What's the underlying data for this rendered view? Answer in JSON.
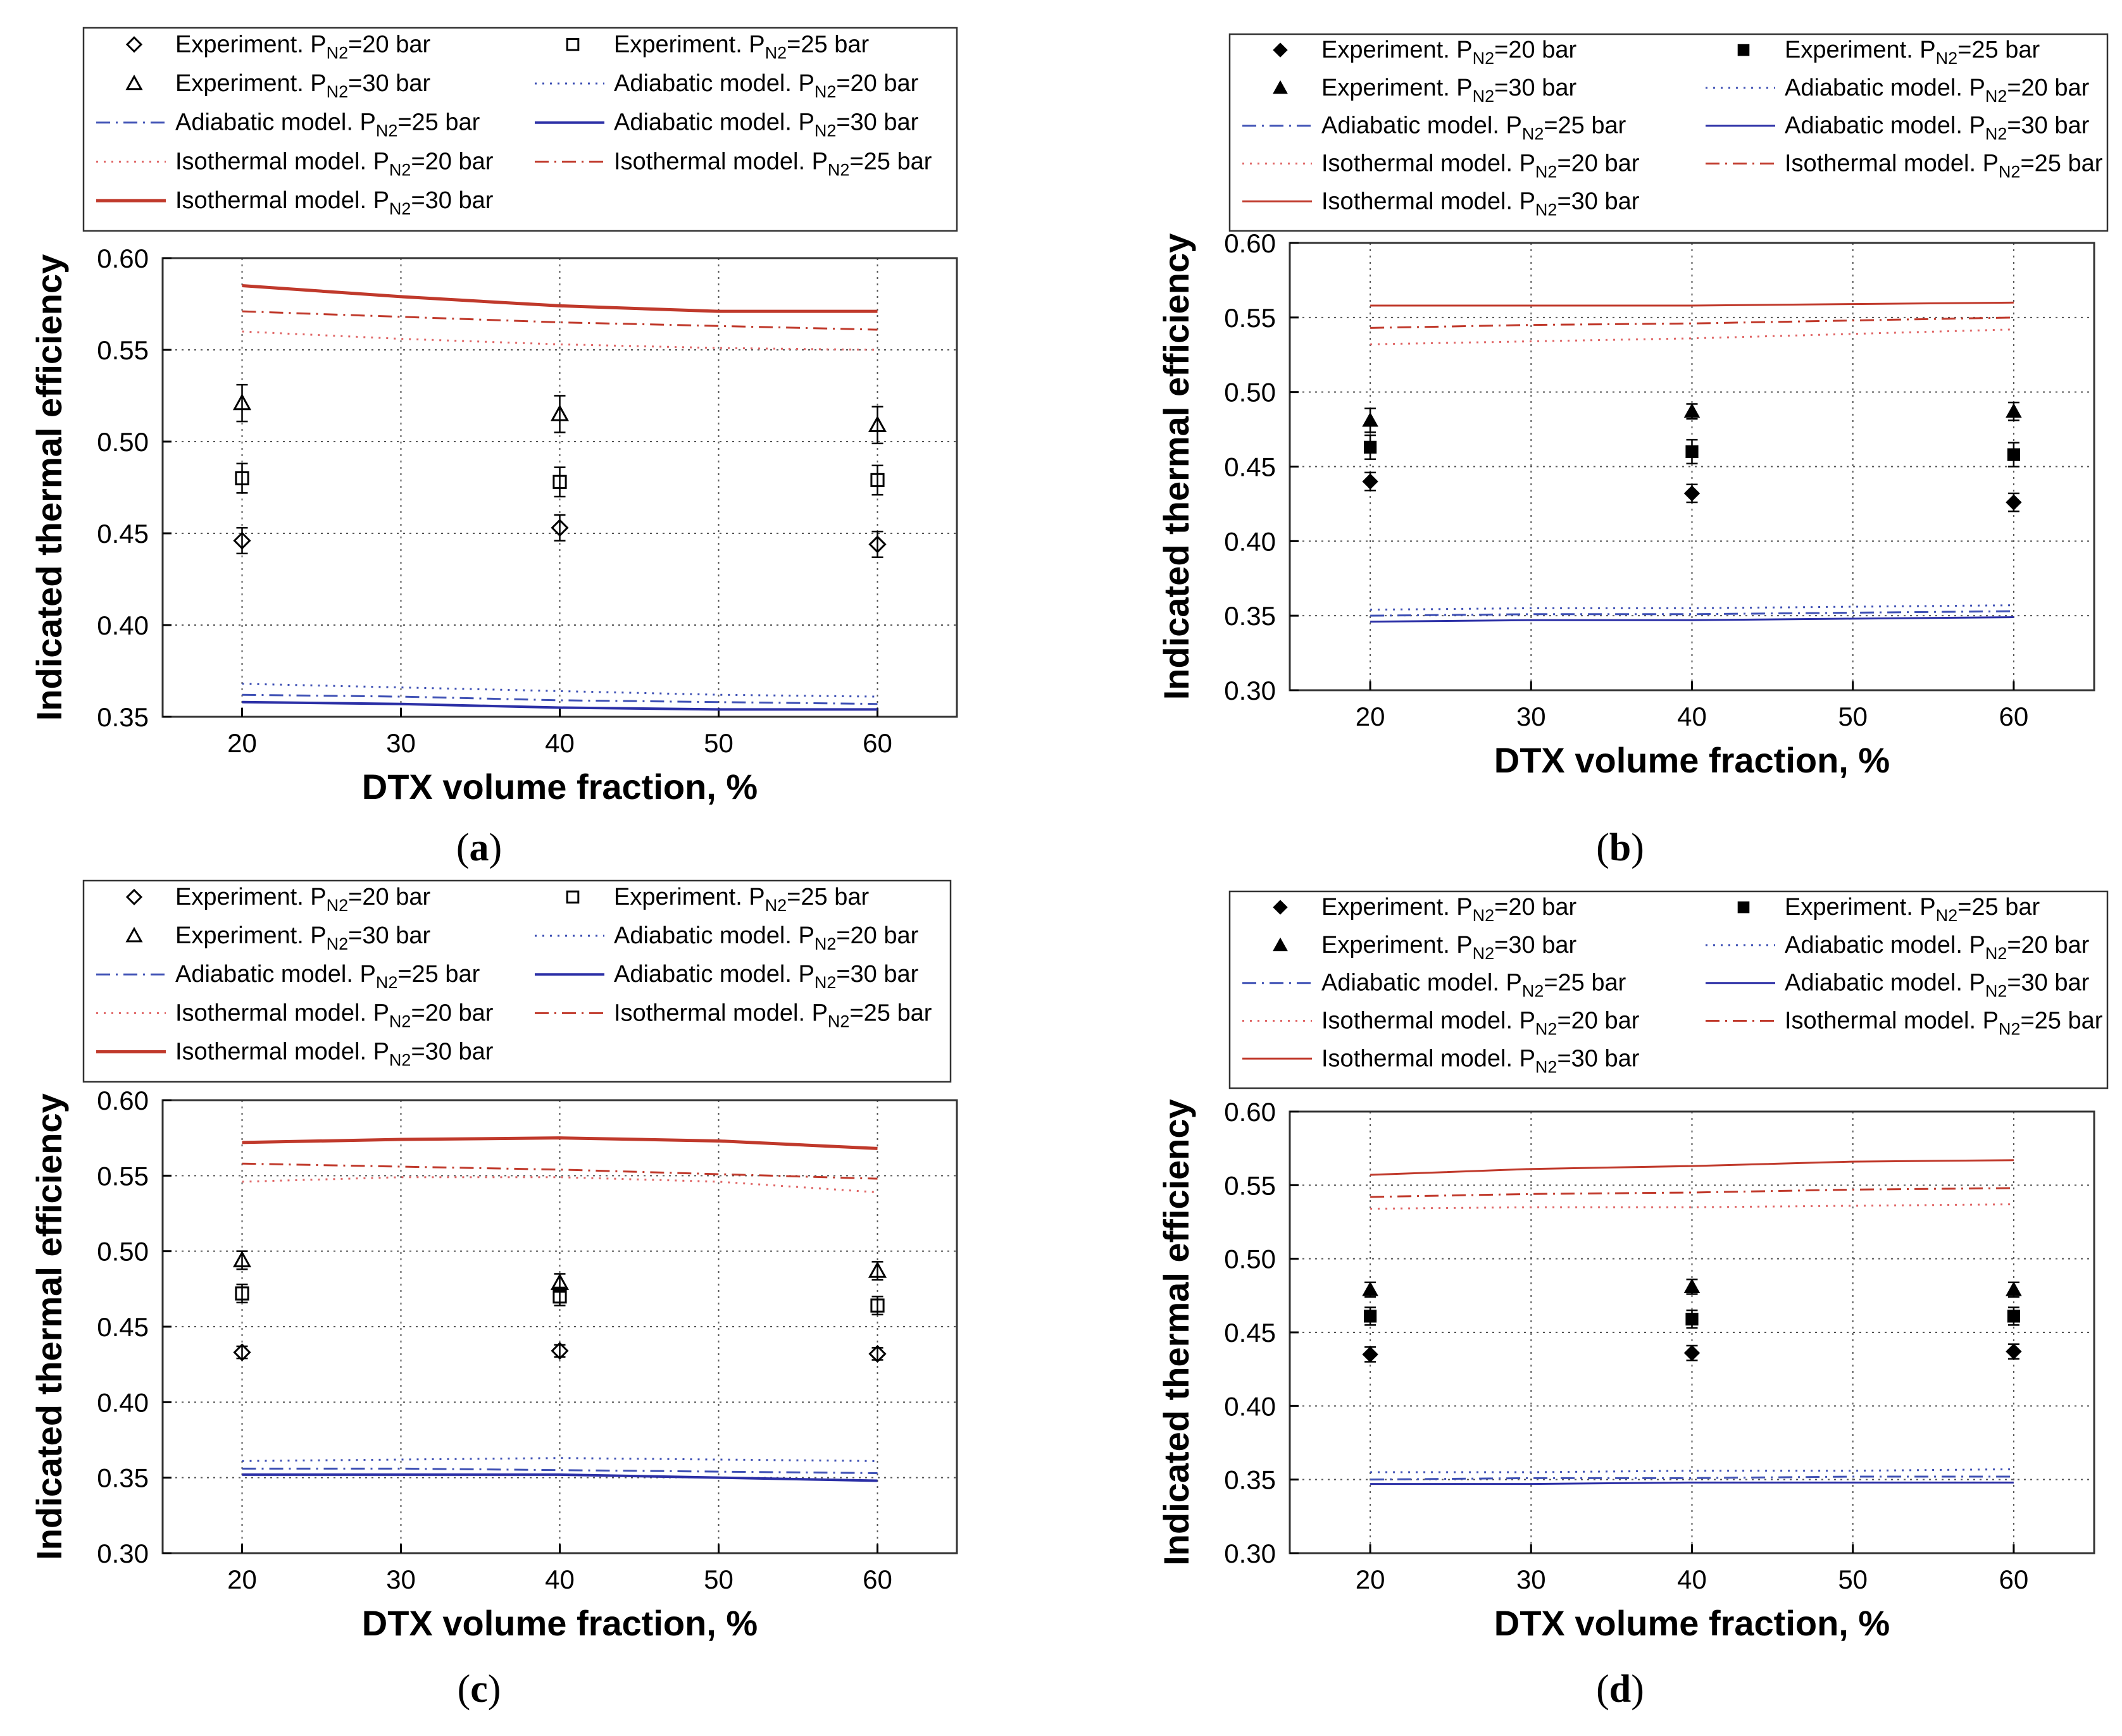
{
  "figure": {
    "panel_letters": [
      "a",
      "b",
      "c",
      "d"
    ]
  },
  "legend": {
    "exp20": {
      "pre": "Experiment. P",
      "sub": "N2",
      "post": "=20 bar"
    },
    "exp25": {
      "pre": "Experiment. P",
      "sub": "N2",
      "post": "=25 bar"
    },
    "exp30": {
      "pre": "Experiment. P",
      "sub": "N2",
      "post": "=30 bar"
    },
    "adi20": {
      "pre": "Adiabatic model. P",
      "sub": "N2",
      "post": "=20 bar"
    },
    "adi25": {
      "pre": "Adiabatic model. P",
      "sub": "N2",
      "post": "=25 bar"
    },
    "adi30": {
      "pre": "Adiabatic model. P",
      "sub": "N2",
      "post": "=30 bar"
    },
    "iso20": {
      "pre": "Isothermal model. P",
      "sub": "N2",
      "post": "=20 bar"
    },
    "iso25": {
      "pre": "Isothermal model. P",
      "sub": "N2",
      "post": "=25 bar"
    },
    "iso30": {
      "pre": "Isothermal model. P",
      "sub": "N2",
      "post": "=30 bar"
    }
  },
  "colors": {
    "red": "#c0392b",
    "pink": "#e06666",
    "blue": "#2b2fa6",
    "blue_light": "#3f51b5",
    "grid": "#555555",
    "frame": "#333333"
  },
  "chart_data": [
    {
      "panel": "a",
      "type": "line",
      "xlabel": "DTX volume fraction, %",
      "ylabel": "Indicated thermal efficiency",
      "xlim": [
        15,
        65
      ],
      "ylim": [
        0.35,
        0.6
      ],
      "xticks": [
        20,
        30,
        40,
        50,
        60
      ],
      "yticks": [
        0.35,
        0.4,
        0.45,
        0.5,
        0.55,
        0.6
      ],
      "ytick_labels": [
        "0.35",
        "0.40",
        "0.45",
        "0.50",
        "0.55",
        "0.60"
      ],
      "marker_fill": "open",
      "experiments": [
        {
          "key": "exp20",
          "marker": "diamond",
          "x": [
            20,
            40,
            60
          ],
          "y": [
            0.446,
            0.453,
            0.444
          ],
          "err": [
            0.007,
            0.007,
            0.007
          ]
        },
        {
          "key": "exp25",
          "marker": "square",
          "x": [
            20,
            40,
            60
          ],
          "y": [
            0.48,
            0.478,
            0.479
          ],
          "err": [
            0.008,
            0.008,
            0.008
          ]
        },
        {
          "key": "exp30",
          "marker": "triangle",
          "x": [
            20,
            40,
            60
          ],
          "y": [
            0.521,
            0.515,
            0.509
          ],
          "err": [
            0.01,
            0.01,
            0.01
          ]
        }
      ],
      "models": [
        {
          "key": "iso30",
          "style": "solid",
          "color": "red",
          "width": 5,
          "x": [
            20,
            30,
            40,
            50,
            60
          ],
          "y": [
            0.585,
            0.579,
            0.574,
            0.571,
            0.571
          ]
        },
        {
          "key": "iso25",
          "style": "dashdot",
          "color": "red",
          "width": 3,
          "x": [
            20,
            30,
            40,
            50,
            60
          ],
          "y": [
            0.571,
            0.568,
            0.565,
            0.563,
            0.561
          ]
        },
        {
          "key": "iso20",
          "style": "dotted",
          "color": "pink",
          "width": 3,
          "x": [
            20,
            30,
            40,
            50,
            60
          ],
          "y": [
            0.56,
            0.556,
            0.553,
            0.551,
            0.55
          ]
        },
        {
          "key": "adi20",
          "style": "dotted",
          "color": "blue_light",
          "width": 3,
          "x": [
            20,
            30,
            40,
            50,
            60
          ],
          "y": [
            0.368,
            0.366,
            0.364,
            0.362,
            0.361
          ]
        },
        {
          "key": "adi25",
          "style": "dashdot",
          "color": "blue_light",
          "width": 3,
          "x": [
            20,
            30,
            40,
            50,
            60
          ],
          "y": [
            0.362,
            0.361,
            0.359,
            0.358,
            0.357
          ]
        },
        {
          "key": "adi30",
          "style": "solid",
          "color": "blue",
          "width": 4,
          "x": [
            20,
            30,
            40,
            50,
            60
          ],
          "y": [
            0.358,
            0.357,
            0.355,
            0.354,
            0.354
          ]
        }
      ]
    },
    {
      "panel": "b",
      "type": "line",
      "xlabel": "DTX volume fraction, %",
      "ylabel": "Indicated thermal efficiency",
      "xlim": [
        15,
        65
      ],
      "ylim": [
        0.3,
        0.6
      ],
      "xticks": [
        20,
        30,
        40,
        50,
        60
      ],
      "yticks": [
        0.3,
        0.35,
        0.4,
        0.45,
        0.5,
        0.55,
        0.6
      ],
      "ytick_labels": [
        "0.30",
        "0.35",
        "0.40",
        "0.45",
        "0.50",
        "0.55",
        "0.60"
      ],
      "marker_fill": "filled",
      "experiments": [
        {
          "key": "exp20",
          "marker": "diamond",
          "x": [
            20,
            40,
            60
          ],
          "y": [
            0.44,
            0.432,
            0.426
          ],
          "err": [
            0.006,
            0.006,
            0.006
          ]
        },
        {
          "key": "exp25",
          "marker": "square",
          "x": [
            20,
            40,
            60
          ],
          "y": [
            0.463,
            0.46,
            0.458
          ],
          "err": [
            0.008,
            0.008,
            0.008
          ]
        },
        {
          "key": "exp30",
          "marker": "triangle",
          "x": [
            20,
            40,
            60
          ],
          "y": [
            0.481,
            0.487,
            0.487
          ],
          "err": [
            0.008,
            0.005,
            0.006
          ]
        }
      ],
      "models": [
        {
          "key": "iso30",
          "style": "solid",
          "color": "red",
          "width": 3,
          "x": [
            20,
            30,
            40,
            50,
            60
          ],
          "y": [
            0.558,
            0.558,
            0.558,
            0.559,
            0.56
          ]
        },
        {
          "key": "iso25",
          "style": "dashdot",
          "color": "red",
          "width": 3,
          "x": [
            20,
            30,
            40,
            50,
            60
          ],
          "y": [
            0.543,
            0.545,
            0.546,
            0.548,
            0.55
          ]
        },
        {
          "key": "iso20",
          "style": "dotted",
          "color": "pink",
          "width": 3,
          "x": [
            20,
            30,
            40,
            50,
            60
          ],
          "y": [
            0.532,
            0.534,
            0.536,
            0.539,
            0.542
          ]
        },
        {
          "key": "adi20",
          "style": "dotted",
          "color": "blue_light",
          "width": 3,
          "x": [
            20,
            30,
            40,
            50,
            60
          ],
          "y": [
            0.354,
            0.355,
            0.355,
            0.356,
            0.357
          ]
        },
        {
          "key": "adi25",
          "style": "dashdot",
          "color": "blue_light",
          "width": 3,
          "x": [
            20,
            30,
            40,
            50,
            60
          ],
          "y": [
            0.35,
            0.351,
            0.351,
            0.352,
            0.353
          ]
        },
        {
          "key": "adi30",
          "style": "solid",
          "color": "blue",
          "width": 3,
          "x": [
            20,
            30,
            40,
            50,
            60
          ],
          "y": [
            0.346,
            0.347,
            0.347,
            0.348,
            0.349
          ]
        }
      ]
    },
    {
      "panel": "c",
      "type": "line",
      "xlabel": "DTX volume fraction, %",
      "ylabel": "Indicated thermal efficiency",
      "xlim": [
        15,
        65
      ],
      "ylim": [
        0.3,
        0.6
      ],
      "xticks": [
        20,
        30,
        40,
        50,
        60
      ],
      "yticks": [
        0.3,
        0.35,
        0.4,
        0.45,
        0.5,
        0.55,
        0.6
      ],
      "ytick_labels": [
        "0.30",
        "0.35",
        "0.40",
        "0.45",
        "0.50",
        "0.55",
        "0.60"
      ],
      "marker_fill": "open",
      "experiments": [
        {
          "key": "exp20",
          "marker": "diamond",
          "x": [
            20,
            40,
            60
          ],
          "y": [
            0.433,
            0.434,
            0.432
          ],
          "err": [
            0.004,
            0.004,
            0.004
          ]
        },
        {
          "key": "exp25",
          "marker": "square",
          "x": [
            20,
            40,
            60
          ],
          "y": [
            0.472,
            0.47,
            0.464
          ],
          "err": [
            0.006,
            0.006,
            0.006
          ]
        },
        {
          "key": "exp30",
          "marker": "triangle",
          "x": [
            20,
            40,
            60
          ],
          "y": [
            0.494,
            0.479,
            0.487
          ],
          "err": [
            0.006,
            0.006,
            0.006
          ]
        }
      ],
      "models": [
        {
          "key": "iso30",
          "style": "solid",
          "color": "red",
          "width": 5,
          "x": [
            20,
            30,
            40,
            50,
            60
          ],
          "y": [
            0.572,
            0.574,
            0.575,
            0.573,
            0.568
          ]
        },
        {
          "key": "iso25",
          "style": "dashdot",
          "color": "red",
          "width": 3,
          "x": [
            20,
            30,
            40,
            50,
            60
          ],
          "y": [
            0.558,
            0.556,
            0.554,
            0.551,
            0.548
          ]
        },
        {
          "key": "iso20",
          "style": "dotted",
          "color": "pink",
          "width": 3,
          "x": [
            20,
            30,
            40,
            50,
            60
          ],
          "y": [
            0.546,
            0.549,
            0.549,
            0.546,
            0.539
          ]
        },
        {
          "key": "adi20",
          "style": "dotted",
          "color": "blue_light",
          "width": 3,
          "x": [
            20,
            30,
            40,
            50,
            60
          ],
          "y": [
            0.361,
            0.362,
            0.363,
            0.362,
            0.361
          ]
        },
        {
          "key": "adi25",
          "style": "dashdot",
          "color": "blue_light",
          "width": 3,
          "x": [
            20,
            30,
            40,
            50,
            60
          ],
          "y": [
            0.356,
            0.356,
            0.355,
            0.354,
            0.353
          ]
        },
        {
          "key": "adi30",
          "style": "solid",
          "color": "blue",
          "width": 4,
          "x": [
            20,
            30,
            40,
            50,
            60
          ],
          "y": [
            0.352,
            0.352,
            0.352,
            0.35,
            0.348
          ]
        }
      ]
    },
    {
      "panel": "d",
      "type": "line",
      "xlabel": "DTX volume fraction, %",
      "ylabel": "Indicated thermal efficiency",
      "xlim": [
        15,
        65
      ],
      "ylim": [
        0.3,
        0.6
      ],
      "xticks": [
        20,
        30,
        40,
        50,
        60
      ],
      "yticks": [
        0.3,
        0.35,
        0.4,
        0.45,
        0.5,
        0.55,
        0.6
      ],
      "ytick_labels": [
        "0.30",
        "0.35",
        "0.40",
        "0.45",
        "0.50",
        "0.55",
        "0.60"
      ],
      "marker_fill": "filled",
      "experiments": [
        {
          "key": "exp20",
          "marker": "diamond",
          "x": [
            20,
            40,
            60
          ],
          "y": [
            0.435,
            0.436,
            0.437
          ],
          "err": [
            0.005,
            0.005,
            0.005
          ]
        },
        {
          "key": "exp25",
          "marker": "square",
          "x": [
            20,
            40,
            60
          ],
          "y": [
            0.461,
            0.459,
            0.461
          ],
          "err": [
            0.006,
            0.006,
            0.006
          ]
        },
        {
          "key": "exp30",
          "marker": "triangle",
          "x": [
            20,
            40,
            60
          ],
          "y": [
            0.479,
            0.481,
            0.479
          ],
          "err": [
            0.005,
            0.005,
            0.005
          ]
        }
      ],
      "models": [
        {
          "key": "iso30",
          "style": "solid",
          "color": "red",
          "width": 3,
          "x": [
            20,
            30,
            40,
            50,
            60
          ],
          "y": [
            0.557,
            0.561,
            0.563,
            0.566,
            0.567
          ]
        },
        {
          "key": "iso25",
          "style": "dashdot",
          "color": "red",
          "width": 3,
          "x": [
            20,
            30,
            40,
            50,
            60
          ],
          "y": [
            0.542,
            0.544,
            0.545,
            0.547,
            0.548
          ]
        },
        {
          "key": "iso20",
          "style": "dotted",
          "color": "pink",
          "width": 3,
          "x": [
            20,
            30,
            40,
            50,
            60
          ],
          "y": [
            0.534,
            0.535,
            0.535,
            0.536,
            0.537
          ]
        },
        {
          "key": "adi20",
          "style": "dotted",
          "color": "blue_light",
          "width": 3,
          "x": [
            20,
            30,
            40,
            50,
            60
          ],
          "y": [
            0.355,
            0.355,
            0.356,
            0.356,
            0.357
          ]
        },
        {
          "key": "adi25",
          "style": "dashdot",
          "color": "blue_light",
          "width": 3,
          "x": [
            20,
            30,
            40,
            50,
            60
          ],
          "y": [
            0.35,
            0.351,
            0.351,
            0.352,
            0.352
          ]
        },
        {
          "key": "adi30",
          "style": "solid",
          "color": "blue",
          "width": 3,
          "x": [
            20,
            30,
            40,
            50,
            60
          ],
          "y": [
            0.347,
            0.347,
            0.348,
            0.348,
            0.348
          ]
        }
      ]
    }
  ]
}
